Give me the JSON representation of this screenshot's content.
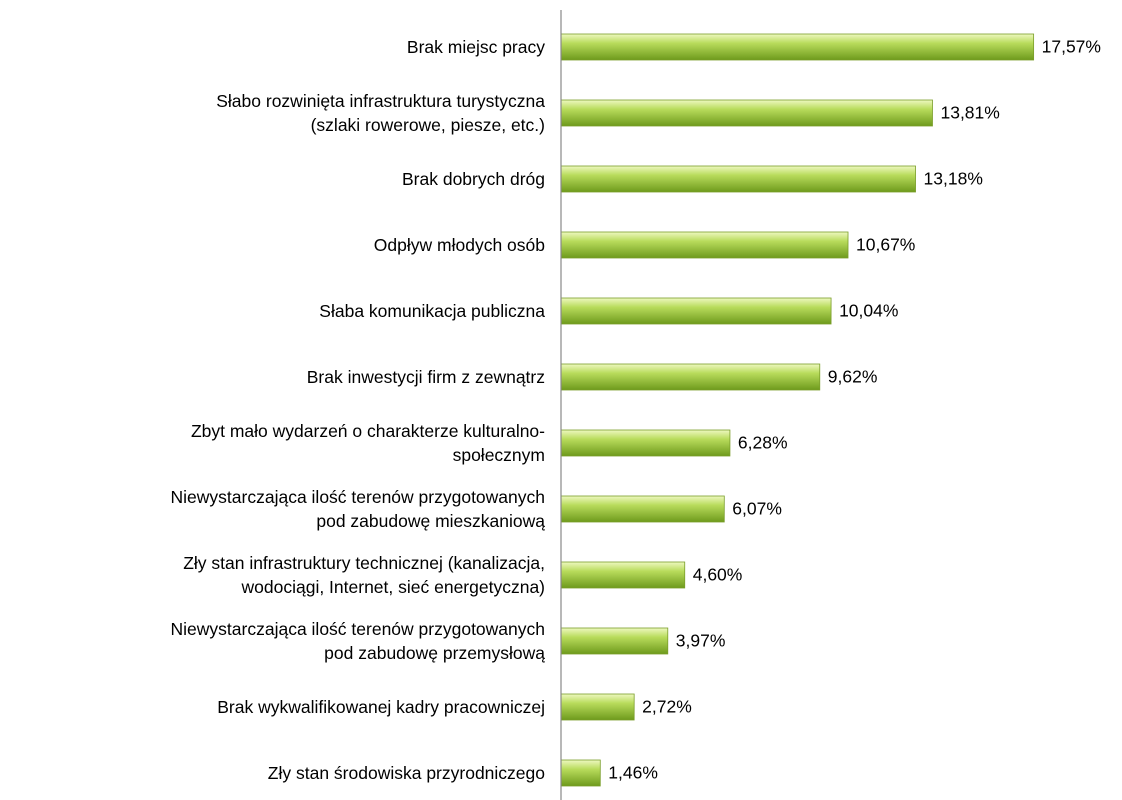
{
  "chart_data": {
    "type": "hbar",
    "categories": [
      "Brak miejsc pracy",
      "Słabo rozwinięta infrastruktura turystyczna\n(szlaki rowerowe, piesze, etc.)",
      "Brak dobrych dróg",
      "Odpływ młodych osób",
      "Słaba komunikacja publiczna",
      "Brak inwestycji firm z zewnątrz",
      "Zbyt mało wydarzeń o charakterze kulturalno-\nspołecznym",
      "Niewystarczająca ilość terenów przygotowanych\npod zabudowę mieszkaniową",
      "Zły stan infrastruktury technicznej (kanalizacja,\nwodociągi, Internet, sieć energetyczna)",
      "Niewystarczająca ilość terenów przygotowanych\npod zabudowę przemysłową",
      "Brak wykwalifikowanej kadry pracowniczej",
      "Zły stan środowiska przyrodniczego"
    ],
    "values": [
      17.57,
      13.81,
      13.18,
      10.67,
      10.04,
      9.62,
      6.28,
      6.07,
      4.6,
      3.97,
      2.72,
      1.46
    ],
    "value_labels": [
      "17,57%",
      "13,81%",
      "13,18%",
      "10,67%",
      "10,04%",
      "9,62%",
      "6,28%",
      "6,07%",
      "4,60%",
      "3,97%",
      "2,72%",
      "1,46%"
    ],
    "color": "#9cc43a",
    "xlim": [
      0,
      20
    ]
  }
}
